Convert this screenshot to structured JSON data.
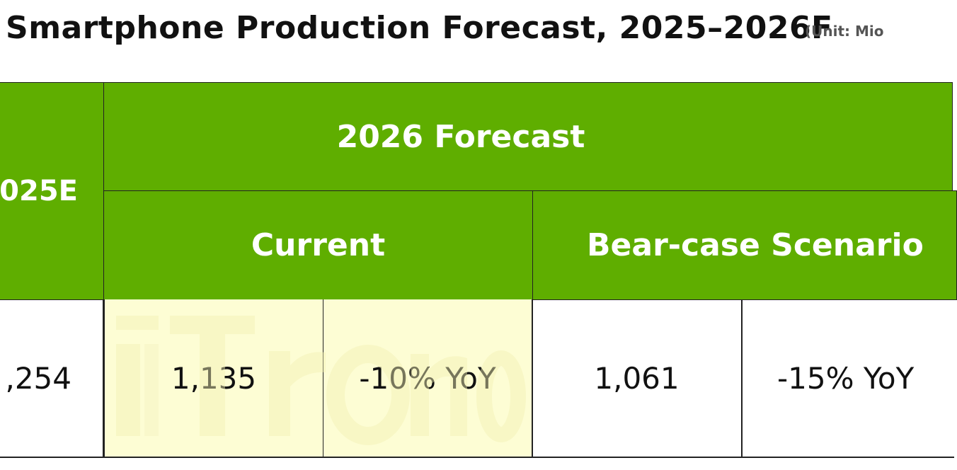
{
  "title": "Smartphone Production Forecast, 2025–2026F",
  "unit": "(Unit: Mio",
  "table": {
    "col_2025": "025E",
    "col_2026": "2026 Forecast",
    "sub_current": "Current",
    "sub_bear": "Bear-case Scenario",
    "row": {
      "v2025": ",254",
      "current": "1,135",
      "current_yoy": "-10% YoY",
      "bear": "1,061",
      "bear_yoy": "-15% YoY"
    }
  },
  "colors": {
    "header_green": "#5fae00",
    "highlight": "#fdfdd4",
    "border": "#222222"
  }
}
